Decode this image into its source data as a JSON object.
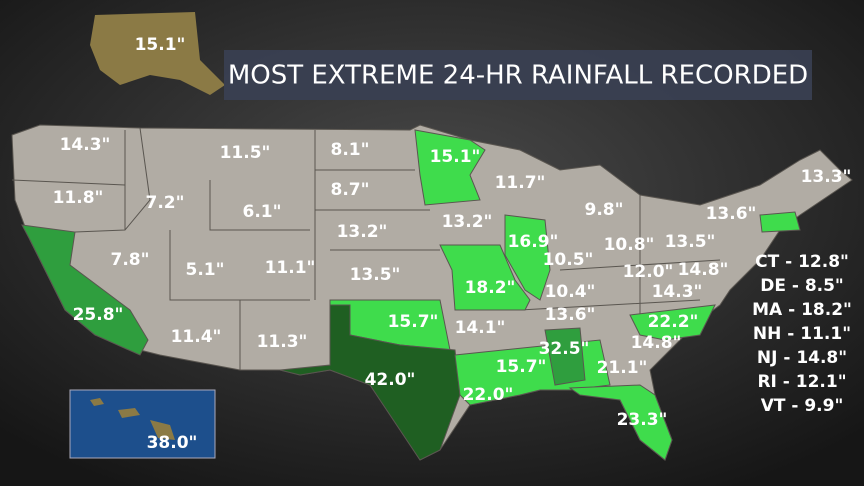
{
  "title": "MOST EXTREME 24-HR RAINFALL RECORDED",
  "alaska_label": "15.1\"",
  "hawaii_label": "38.0\"",
  "state_labels": [
    "14.3\"",
    "11.8\"",
    "25.8\"",
    "7.2\"",
    "7.8\"",
    "11.5\"",
    "6.1\"",
    "5.1\"",
    "11.4\"",
    "11.1\"",
    "11.3\"",
    "8.1\"",
    "8.7\"",
    "13.2\"",
    "13.5\"",
    "15.7\"",
    "42.0\"",
    "15.1\"",
    "13.2\"",
    "18.2\"",
    "14.1\"",
    "22.0\"",
    "11.7\"",
    "16.9\"",
    "15.7\"",
    "9.8\"",
    "10.5\"",
    "10.8\"",
    "10.4\"",
    "13.6\"",
    "32.5\"",
    "21.1\"",
    "23.3\"",
    "14.8\"",
    "22.2\"",
    "14.3\"",
    "12.0\"",
    "14.8\"",
    "13.5\"",
    "13.6\"",
    "13.3\""
  ],
  "small_states": [
    "CT - 12.8\"",
    "DE - 8.5\"",
    "MA - 18.2\"",
    "NH - 11.1\"",
    "NJ - 14.8\"",
    "RI - 12.1\"",
    "VT - 9.9\""
  ]
}
